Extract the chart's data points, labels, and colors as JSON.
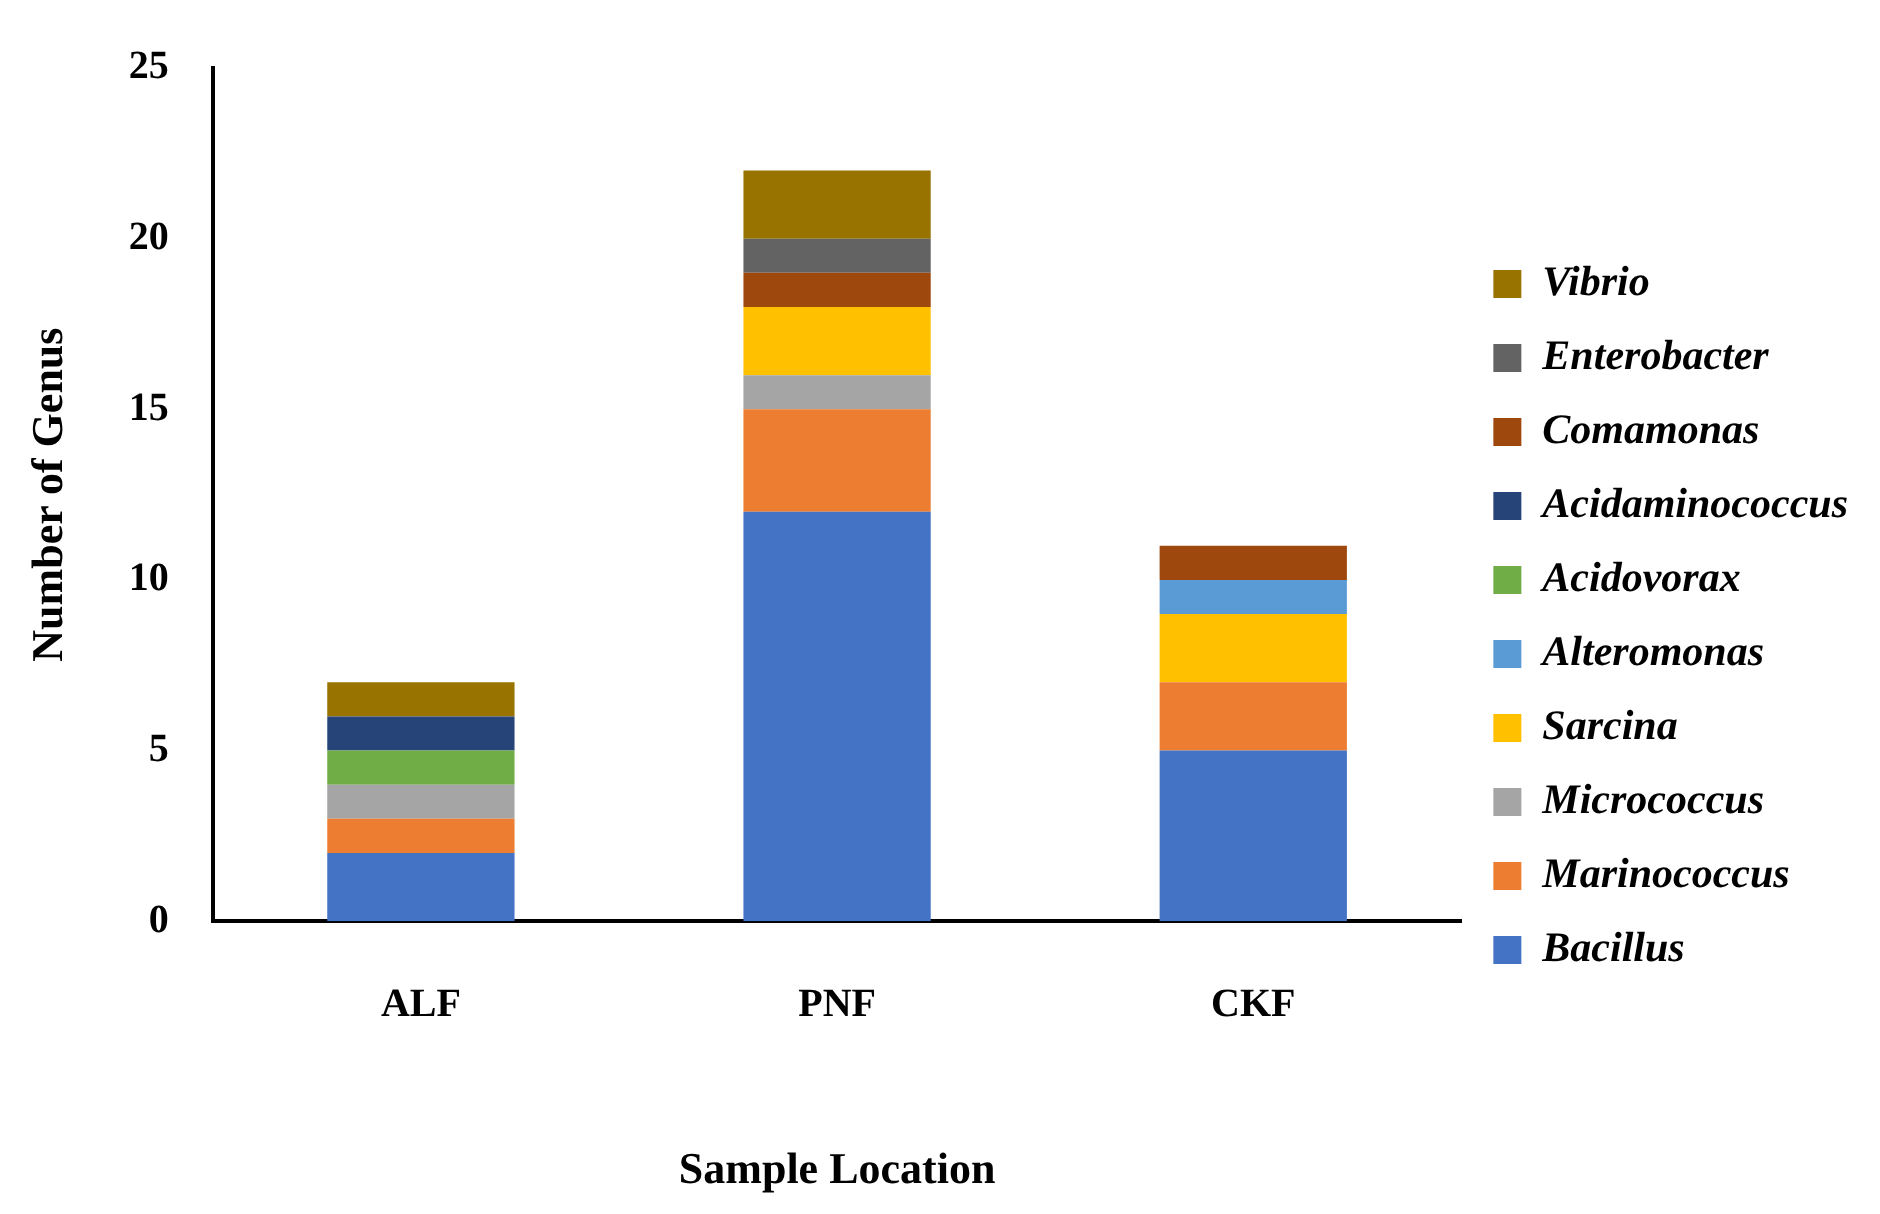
{
  "chart_data": {
    "type": "bar",
    "stacked": true,
    "xlabel": "Sample Location",
    "ylabel": "Number of Genus",
    "categories": [
      "ALF",
      "PNF",
      "CKF"
    ],
    "series": [
      {
        "name": "Bacillus",
        "color": "#4472c4",
        "values": [
          2,
          12,
          5
        ]
      },
      {
        "name": "Marinococcus",
        "color": "#ed7d31",
        "values": [
          1,
          3,
          2
        ]
      },
      {
        "name": "Micrococcus",
        "color": "#a5a5a5",
        "values": [
          1,
          1,
          null
        ]
      },
      {
        "name": "Sarcina",
        "color": "#ffc000",
        "values": [
          null,
          2,
          2
        ]
      },
      {
        "name": "Alteromonas",
        "color": "#5b9bd5",
        "values": [
          null,
          null,
          1
        ]
      },
      {
        "name": "Acidovorax",
        "color": "#70ad47",
        "values": [
          1,
          null,
          null
        ]
      },
      {
        "name": "Acidaminococcus",
        "color": "#264478",
        "values": [
          1,
          null,
          null
        ]
      },
      {
        "name": "Comamonas",
        "color": "#9e480e",
        "values": [
          null,
          1,
          1
        ]
      },
      {
        "name": "Enterobacter",
        "color": "#636363",
        "values": [
          null,
          1,
          null
        ]
      },
      {
        "name": "Vibrio",
        "color": "#997300",
        "values": [
          1,
          2,
          null
        ]
      }
    ],
    "ylim": [
      0,
      25
    ],
    "yticks": [
      0,
      5,
      10,
      15,
      20,
      25
    ],
    "grid": false,
    "legend": "right"
  }
}
